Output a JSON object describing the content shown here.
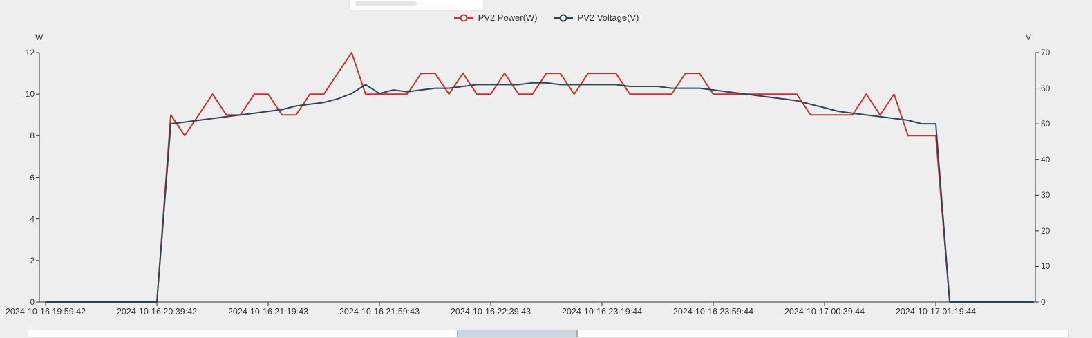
{
  "page": {
    "background": "#eeeeee"
  },
  "chart_data": {
    "type": "line",
    "title": "",
    "legend_position": "top-center",
    "x_axis": {
      "tick_labels": [
        "2024-10-16 19:59:42",
        "2024-10-16 20:39:42",
        "2024-10-16 21:19:43",
        "2024-10-16 21:59:43",
        "2024-10-16 22:39:43",
        "2024-10-16 23:19:44",
        "2024-10-16 23:59:44",
        "2024-10-17 00:39:44",
        "2024-10-17 01:19:44"
      ],
      "samples_per_tick": 8,
      "sample_interval_minutes": 5
    },
    "y_left": {
      "unit": "W",
      "min": 0,
      "max": 12,
      "ticks": [
        0,
        2,
        4,
        6,
        8,
        10,
        12
      ]
    },
    "y_right": {
      "unit": "V",
      "min": 0,
      "max": 70,
      "ticks": [
        0,
        10,
        20,
        30,
        40,
        50,
        60,
        70
      ]
    },
    "grid": false,
    "axis_color": "#333333",
    "series": [
      {
        "name": "PV2 Power(W)",
        "axis": "left",
        "color": "#c23531",
        "values": [
          0,
          0,
          0,
          0,
          0,
          0,
          0,
          0,
          0,
          9,
          8,
          9,
          10,
          9,
          9,
          10,
          10,
          9,
          9,
          10,
          10,
          11,
          12,
          10,
          10,
          10,
          10,
          11,
          11,
          10,
          11,
          10,
          10,
          11,
          10,
          10,
          11,
          11,
          10,
          11,
          11,
          11,
          10,
          10,
          10,
          10,
          11,
          11,
          10,
          10,
          10,
          10,
          10,
          10,
          10,
          9,
          9,
          9,
          9,
          10,
          9,
          10,
          8,
          8,
          8,
          0,
          0,
          0,
          0,
          0,
          0,
          0
        ]
      },
      {
        "name": "PV2 Voltage(V)",
        "axis": "right",
        "color": "#2f4554",
        "values": [
          0,
          0,
          0,
          0,
          0,
          0,
          0,
          0,
          0,
          50,
          50.5,
          51,
          51.5,
          52,
          52.5,
          53,
          53.5,
          54,
          55,
          55.5,
          56,
          57,
          58.5,
          61,
          58.5,
          59.5,
          59,
          59.5,
          60,
          60,
          60.5,
          61,
          61,
          61,
          61,
          61.5,
          61.5,
          61,
          61,
          61,
          61,
          61,
          60.5,
          60.5,
          60.5,
          60,
          60,
          60,
          59.5,
          59,
          58.5,
          58,
          57.5,
          57,
          56.5,
          55.5,
          54.5,
          53.5,
          53,
          52.5,
          52,
          51.5,
          51,
          50,
          50,
          0,
          0,
          0,
          0,
          0,
          0,
          0
        ]
      }
    ]
  },
  "top_fragment": {
    "text": ""
  },
  "bottom_scrollbar": {
    "text": ""
  }
}
